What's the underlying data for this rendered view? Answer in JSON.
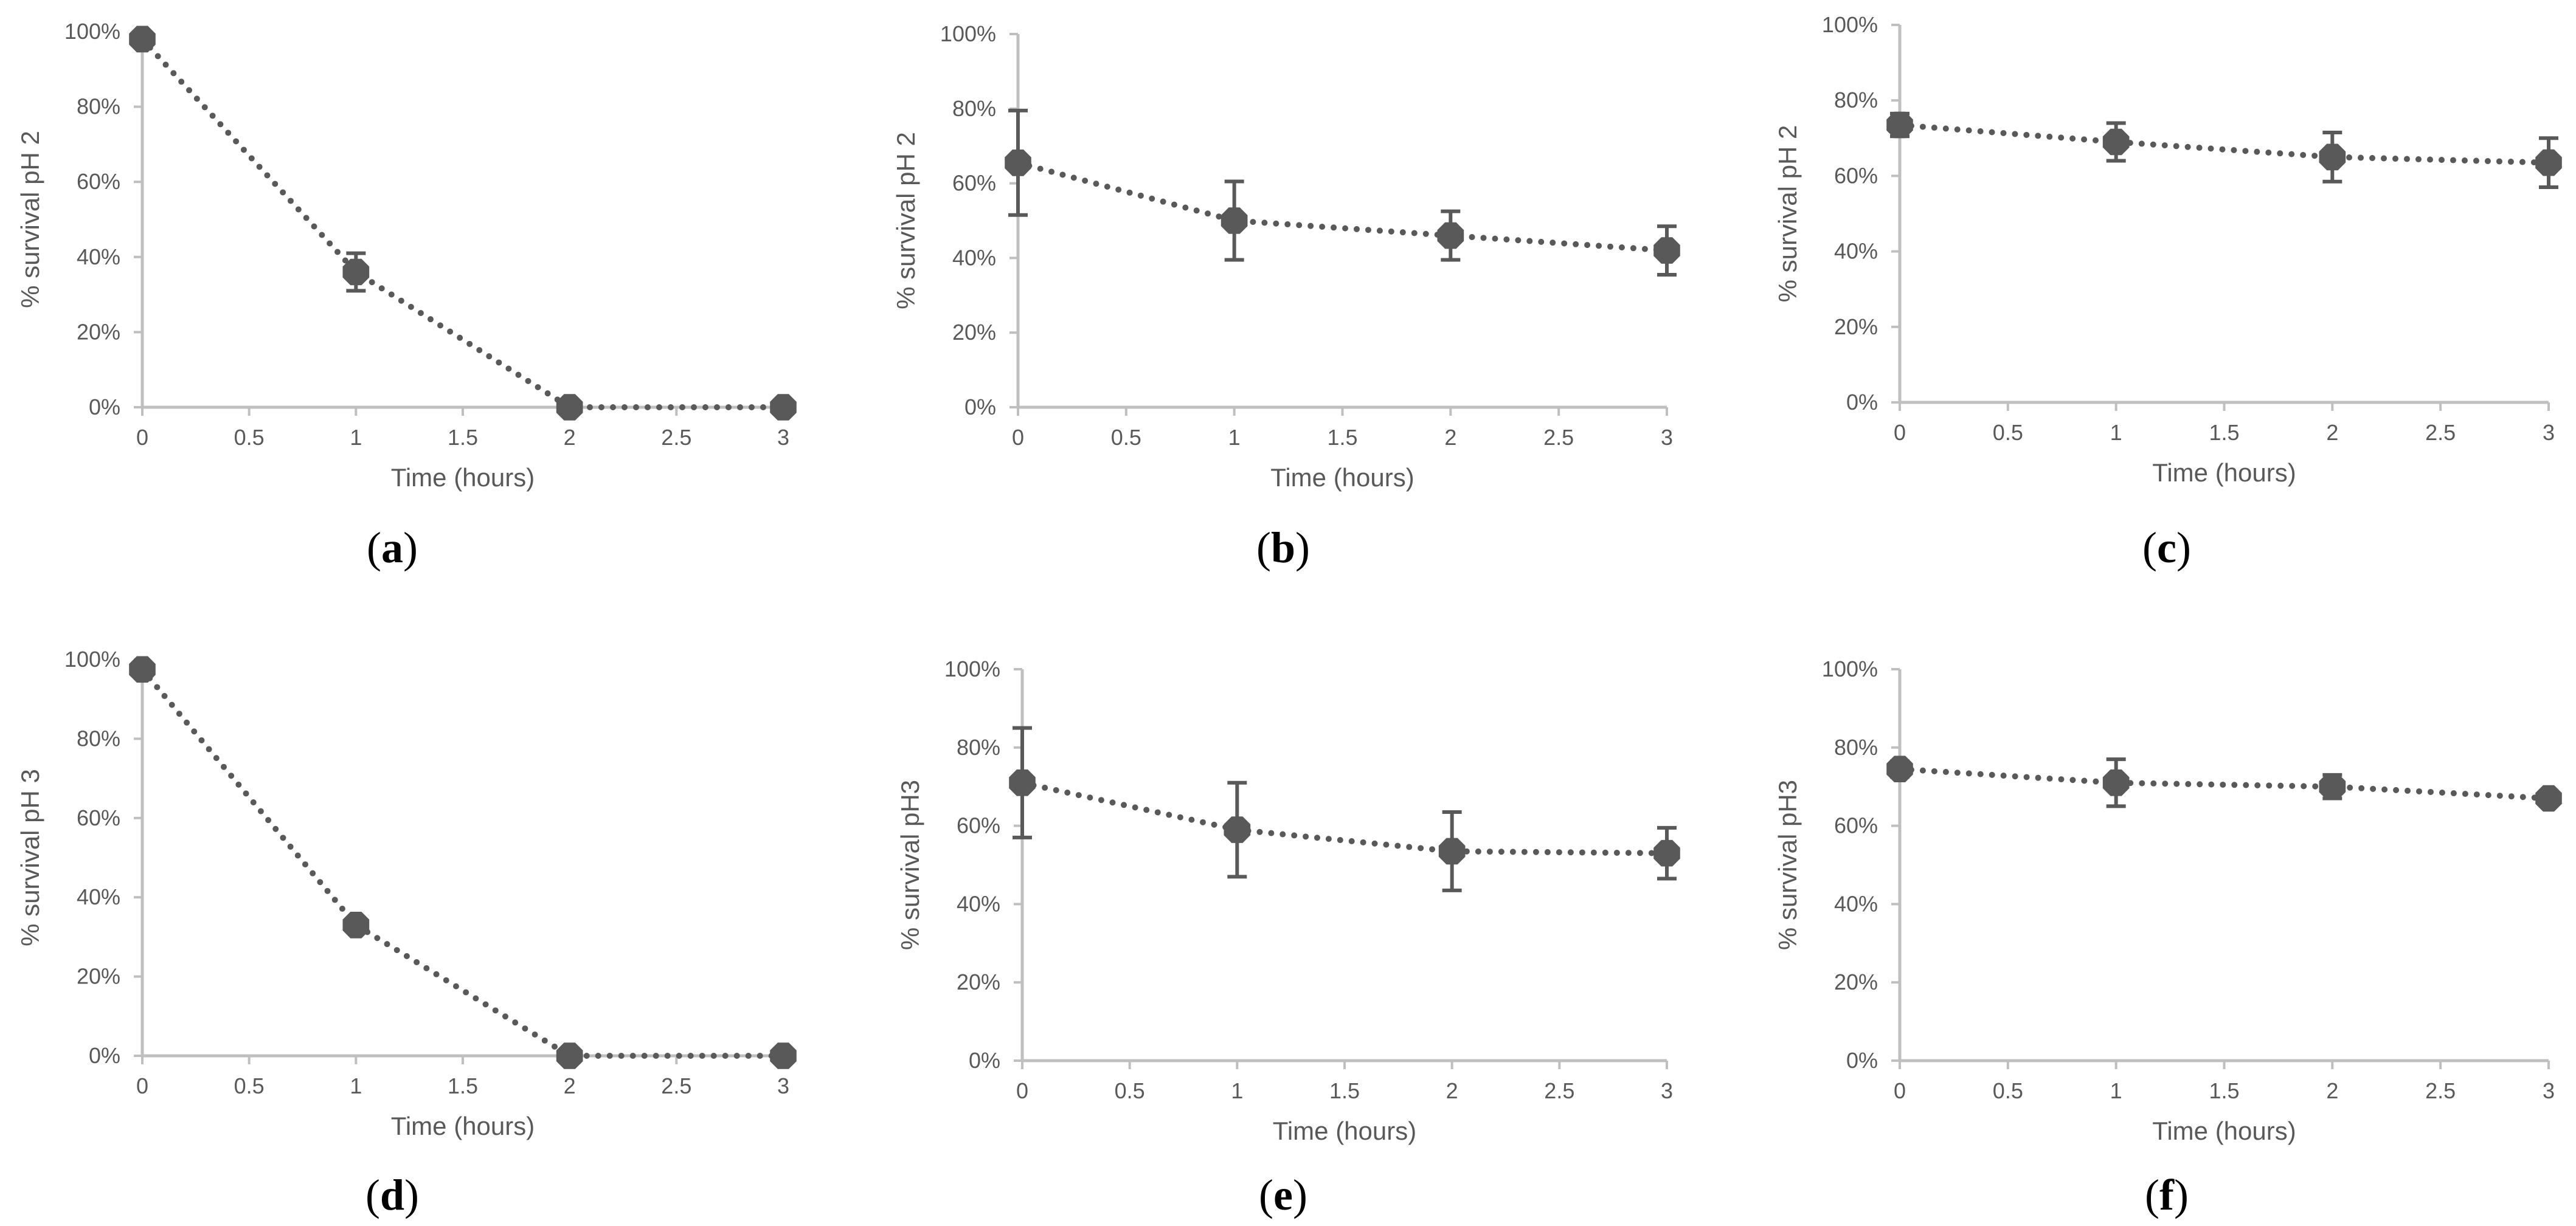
{
  "colors": {
    "axis": "#bfbfbf",
    "series": "#595959",
    "tick_text": "#595959",
    "label_text": "#000000"
  },
  "chart_data": [
    {
      "type": "line",
      "panel": "a",
      "label": "a",
      "xlabel": "Time (hours)",
      "ylabel": "% survival pH 2",
      "xlim": [
        0,
        3
      ],
      "ylim": [
        0,
        100
      ],
      "xticks": [
        "0",
        "0.5",
        "1",
        "1.5",
        "2",
        "2.5",
        "3"
      ],
      "yticks": [
        "0%",
        "20%",
        "40%",
        "60%",
        "80%",
        "100%"
      ],
      "series": [
        {
          "name": "survival",
          "x": [
            0,
            1,
            2,
            3
          ],
          "values": [
            98,
            36,
            0,
            0
          ],
          "error": [
            1,
            5,
            0,
            0
          ]
        }
      ]
    },
    {
      "type": "line",
      "panel": "b",
      "label": "b",
      "xlabel": "Time (hours)",
      "ylabel": "% survival pH 2",
      "xlim": [
        0,
        3
      ],
      "ylim": [
        0,
        100
      ],
      "xticks": [
        "0",
        "0.5",
        "1",
        "1.5",
        "2",
        "2.5",
        "3"
      ],
      "yticks": [
        "0%",
        "20%",
        "40%",
        "60%",
        "80%",
        "100%"
      ],
      "series": [
        {
          "name": "survival",
          "x": [
            0,
            1,
            2,
            3
          ],
          "values": [
            65.5,
            50,
            46,
            42
          ],
          "error": [
            14,
            10.5,
            6.5,
            6.5
          ]
        }
      ]
    },
    {
      "type": "line",
      "panel": "c",
      "label": "c",
      "xlabel": "Time (hours)",
      "ylabel": "% survival pH 2",
      "xlim": [
        0,
        3
      ],
      "ylim": [
        0,
        100
      ],
      "xticks": [
        "0",
        "0.5",
        "1",
        "1.5",
        "2",
        "2.5",
        "3"
      ],
      "yticks": [
        "0%",
        "20%",
        "40%",
        "60%",
        "80%",
        "100%"
      ],
      "series": [
        {
          "name": "survival",
          "x": [
            0,
            1,
            2,
            3
          ],
          "values": [
            73.5,
            69,
            65,
            63.5
          ],
          "error": [
            3,
            5,
            6.5,
            6.5
          ]
        }
      ]
    },
    {
      "type": "line",
      "panel": "d",
      "label": "d",
      "xlabel": "Time (hours)",
      "ylabel": "% survival pH 3",
      "xlim": [
        0,
        3
      ],
      "ylim": [
        0,
        100
      ],
      "xticks": [
        "0",
        "0.5",
        "1",
        "1.5",
        "2",
        "2.5",
        "3"
      ],
      "yticks": [
        "0%",
        "20%",
        "40%",
        "60%",
        "80%",
        "100%"
      ],
      "series": [
        {
          "name": "survival",
          "x": [
            0,
            1,
            2,
            3
          ],
          "values": [
            97.5,
            33,
            0,
            0
          ],
          "error": [
            1,
            1.5,
            0,
            0
          ]
        }
      ]
    },
    {
      "type": "line",
      "panel": "e",
      "label": "e",
      "xlabel": "Time (hours)",
      "ylabel": "% survival pH3",
      "xlim": [
        0,
        3
      ],
      "ylim": [
        0,
        100
      ],
      "xticks": [
        "0",
        "0.5",
        "1",
        "1.5",
        "2",
        "2.5",
        "3"
      ],
      "yticks": [
        "0%",
        "20%",
        "40%",
        "60%",
        "80%",
        "100%"
      ],
      "series": [
        {
          "name": "survival",
          "x": [
            0,
            1,
            2,
            3
          ],
          "values": [
            71,
            59,
            53.5,
            53
          ],
          "error": [
            14,
            12,
            10,
            6.5
          ]
        }
      ]
    },
    {
      "type": "line",
      "panel": "f",
      "label": "f",
      "xlabel": "Time (hours)",
      "ylabel": "% survival pH3",
      "xlim": [
        0,
        3
      ],
      "ylim": [
        0,
        100
      ],
      "xticks": [
        "0",
        "0.5",
        "1",
        "1.5",
        "2",
        "2.5",
        "3"
      ],
      "yticks": [
        "0%",
        "20%",
        "40%",
        "60%",
        "80%",
        "100%"
      ],
      "series": [
        {
          "name": "survival",
          "x": [
            0,
            1,
            2,
            3
          ],
          "values": [
            74.5,
            71,
            70,
            67
          ],
          "error": [
            2,
            6,
            3,
            1.5
          ]
        }
      ]
    }
  ]
}
